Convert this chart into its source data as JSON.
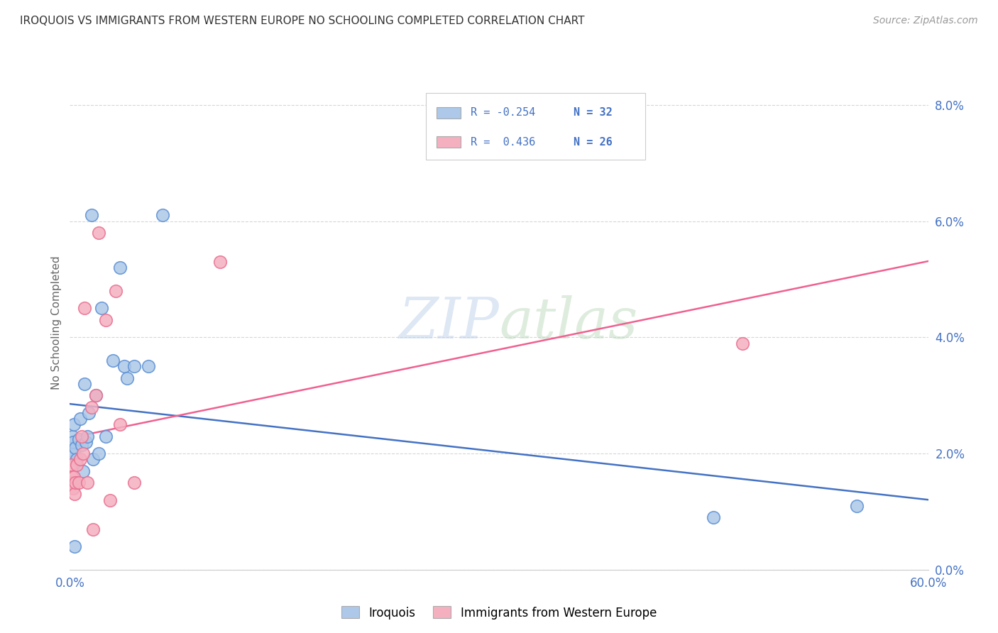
{
  "title": "IROQUOIS VS IMMIGRANTS FROM WESTERN EUROPE NO SCHOOLING COMPLETED CORRELATION CHART",
  "source": "Source: ZipAtlas.com",
  "ylabel": "No Schooling Completed",
  "right_yticks": [
    "0.0%",
    "2.0%",
    "4.0%",
    "6.0%",
    "8.0%"
  ],
  "right_ytick_vals": [
    0.0,
    2.0,
    4.0,
    6.0,
    8.0
  ],
  "xlim": [
    0.0,
    60.0
  ],
  "ylim": [
    0.0,
    8.5
  ],
  "iroquois_color": "#adc8e8",
  "immigrants_color": "#f5b0c0",
  "iroquois_edge_color": "#5b8fd4",
  "immigrants_edge_color": "#e87090",
  "iroquois_line_color": "#4472c4",
  "immigrants_line_color": "#f06090",
  "legend_box_iroquois": "#adc8e8",
  "legend_box_immigrants": "#f5b0c0",
  "R_iroquois": -0.254,
  "N_iroquois": 32,
  "R_immigrants": 0.436,
  "N_immigrants": 26,
  "iroquois_x": [
    0.05,
    0.1,
    0.15,
    0.2,
    0.25,
    0.3,
    0.35,
    0.4,
    0.5,
    0.6,
    0.7,
    0.8,
    0.9,
    1.0,
    1.1,
    1.2,
    1.3,
    1.5,
    1.6,
    1.8,
    2.0,
    2.2,
    2.5,
    3.0,
    3.5,
    3.8,
    4.0,
    4.5,
    5.5,
    6.5,
    45.0,
    55.0
  ],
  "iroquois_y": [
    2.1,
    2.05,
    2.0,
    2.3,
    2.2,
    2.5,
    0.4,
    2.1,
    1.9,
    2.25,
    2.6,
    2.15,
    1.7,
    3.2,
    2.2,
    2.3,
    2.7,
    6.1,
    1.9,
    3.0,
    2.0,
    4.5,
    2.3,
    3.6,
    5.2,
    3.5,
    3.3,
    3.5,
    3.5,
    6.1,
    0.9,
    1.1
  ],
  "immigrants_x": [
    0.05,
    0.1,
    0.15,
    0.2,
    0.25,
    0.3,
    0.35,
    0.4,
    0.5,
    0.6,
    0.7,
    0.8,
    0.9,
    1.0,
    1.2,
    1.5,
    1.6,
    1.8,
    2.0,
    2.5,
    2.8,
    3.2,
    3.5,
    4.5,
    10.5,
    47.0
  ],
  "immigrants_y": [
    1.5,
    1.8,
    1.6,
    1.5,
    1.4,
    1.6,
    1.3,
    1.5,
    1.8,
    1.5,
    1.9,
    2.3,
    2.0,
    4.5,
    1.5,
    2.8,
    0.7,
    3.0,
    5.8,
    4.3,
    1.2,
    4.8,
    2.5,
    1.5,
    5.3,
    3.9
  ],
  "watermark_zip": "ZIP",
  "watermark_atlas": "atlas",
  "background_color": "#ffffff",
  "grid_color": "#cccccc",
  "title_color": "#333333",
  "source_color": "#999999",
  "axis_color": "#4472c4",
  "ylabel_color": "#666666"
}
